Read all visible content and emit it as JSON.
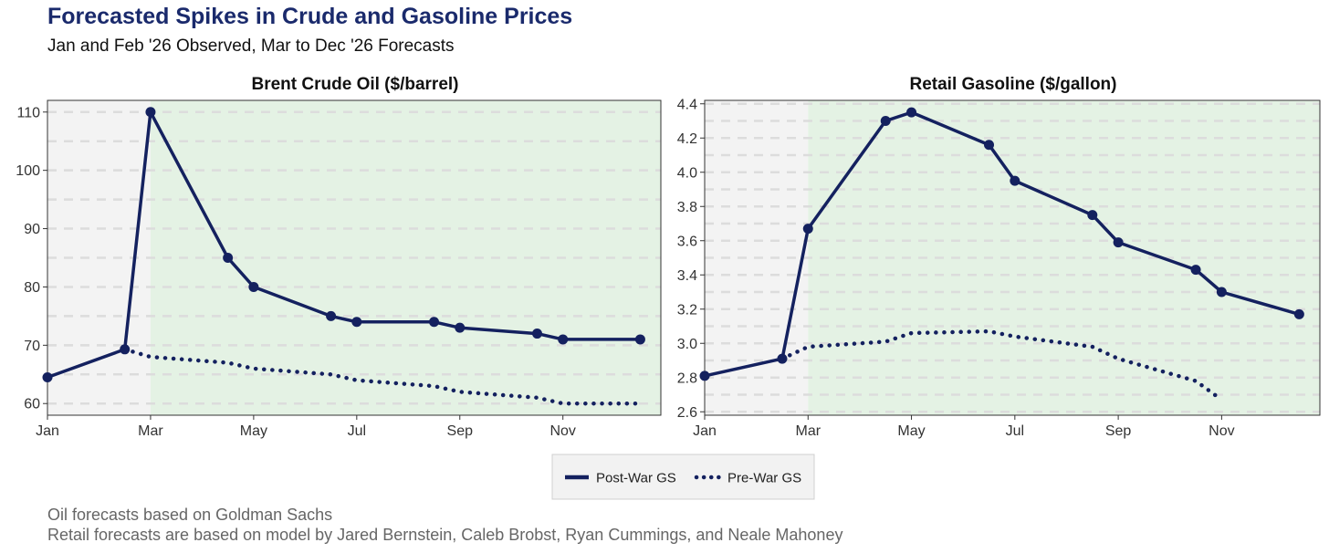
{
  "title": "Forecasted Spikes in Crude and Gasoline Prices",
  "subtitle": "Jan and Feb '26 Observed, Mar to Dec '26 Forecasts",
  "captions": [
    "Oil forecasts based on Goldman Sachs",
    "Retail forecasts are based on model by Jared Bernstein, Caleb Brobst, Ryan Cummings, and Neale Mahoney"
  ],
  "colors": {
    "series": "#14215f",
    "observed_bg": "#f3f3f3",
    "forecast_bg": "#e4f2e4",
    "grid": "#dcdcdc"
  },
  "legend": {
    "position": "bottom",
    "items": [
      {
        "label": "Post-War GS",
        "style": "solid"
      },
      {
        "label": "Pre-War GS",
        "style": "dotted"
      }
    ]
  },
  "chart_data": [
    {
      "type": "line",
      "title": "Brent Crude Oil ($/barrel)",
      "xlabel": "",
      "ylabel": "",
      "x_ticks": [
        "Jan",
        "Mar",
        "May",
        "Jul",
        "Sep",
        "Nov"
      ],
      "ylim": [
        58,
        112
      ],
      "y_ticks": [
        60,
        70,
        80,
        90,
        100,
        110
      ],
      "grid": true,
      "observed_until_month": 3,
      "series": [
        {
          "name": "Post-War GS",
          "style": "solid-markers",
          "points": [
            [
              1,
              64.5
            ],
            [
              2.5,
              69.3
            ],
            [
              3,
              110
            ],
            [
              4.5,
              85
            ],
            [
              5,
              80
            ],
            [
              6.5,
              75
            ],
            [
              7,
              74
            ],
            [
              8.5,
              74
            ],
            [
              9,
              73
            ],
            [
              10.5,
              72
            ],
            [
              11,
              71
            ],
            [
              12.5,
              71
            ]
          ]
        },
        {
          "name": "Pre-War GS",
          "style": "dotted",
          "points": [
            [
              2.5,
              69.3
            ],
            [
              3,
              68
            ],
            [
              4.5,
              67
            ],
            [
              5,
              66
            ],
            [
              6.5,
              65
            ],
            [
              7,
              64
            ],
            [
              8.5,
              63
            ],
            [
              9,
              62
            ],
            [
              10.5,
              61
            ],
            [
              11,
              60
            ],
            [
              12.5,
              60
            ]
          ]
        }
      ]
    },
    {
      "type": "line",
      "title": "Retail Gasoline ($/gallon)",
      "xlabel": "",
      "ylabel": "",
      "x_ticks": [
        "Jan",
        "Mar",
        "May",
        "Jul",
        "Sep",
        "Nov"
      ],
      "ylim": [
        2.58,
        4.42
      ],
      "y_ticks": [
        2.6,
        2.8,
        3.0,
        3.2,
        3.4,
        3.6,
        3.8,
        4.0,
        4.2,
        4.4
      ],
      "grid": true,
      "observed_until_month": 3,
      "series": [
        {
          "name": "Post-War GS",
          "style": "solid-markers",
          "points": [
            [
              1,
              2.81
            ],
            [
              2.5,
              2.91
            ],
            [
              3,
              3.67
            ],
            [
              4.5,
              4.3
            ],
            [
              5,
              4.35
            ],
            [
              6.5,
              4.16
            ],
            [
              7,
              3.95
            ],
            [
              8.5,
              3.75
            ],
            [
              9,
              3.59
            ],
            [
              10.5,
              3.43
            ],
            [
              11,
              3.3
            ],
            [
              12.5,
              3.17
            ]
          ]
        },
        {
          "name": "Pre-War GS",
          "style": "dotted",
          "points": [
            [
              2.5,
              2.91
            ],
            [
              3,
              2.98
            ],
            [
              4.5,
              3.01
            ],
            [
              5,
              3.06
            ],
            [
              6.5,
              3.07
            ],
            [
              7,
              3.04
            ],
            [
              8.5,
              2.98
            ],
            [
              9,
              2.91
            ],
            [
              10.5,
              2.78
            ],
            [
              11,
              2.67
            ]
          ]
        }
      ]
    }
  ]
}
